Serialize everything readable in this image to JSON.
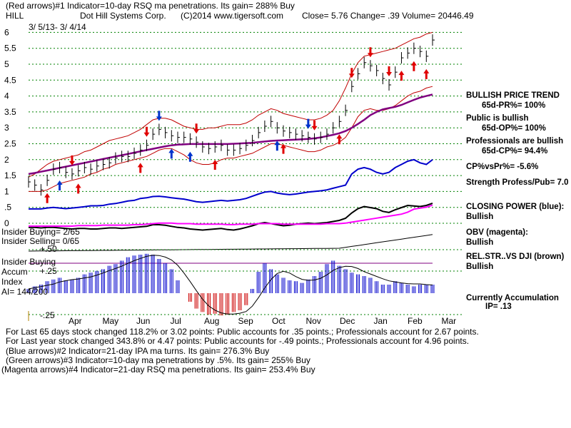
{
  "header": {
    "line1": "(Red arrows)#1 Indicator=10-day RSQ ma penetrations. Its gain= 288% Buy",
    "ticker": "HILL",
    "company": "Dot Hill Systems Corp.",
    "copyright": "(C)2014 www.tigersoft.com",
    "quote": "Close=  5.76  Change= .39 Volume= 20446.49",
    "date_range": "3/ 5/13- 3/ 4/14"
  },
  "colors": {
    "price": "#000000",
    "ma": "#800080",
    "bands": "#c00000",
    "ipa": "#0000cc",
    "cp": "#000000",
    "obv": "#ff00ff",
    "rel": "#000000",
    "accum_pos": "#0000cc",
    "accum_neg": "#cc0000",
    "grid": "#008000",
    "up_arrow": "#e00000",
    "down_arrow": "#e00000",
    "blue_arrow": "#0033cc"
  },
  "right_panel": {
    "trend_title": "BULLISH PRICE TREND",
    "pr": "65d-PR%= 100%",
    "public": "Public is bullish",
    "op": "65d-OP%= 100%",
    "prof": "Professionals are bullish",
    "cp": "65d-CP%= 94.4%",
    "cpvspr": "CP%vsPr%= -5.6%",
    "strength": "Strength Profess/Pub= 7.0",
    "closing_power": "CLOSING POWER (blue):",
    "closing_power_val": "Bullish",
    "obv": "OBV (magenta):",
    "obv_val": "Bullish",
    "relstr": "REL.STR..VS DJI (brown)",
    "relstr_val": "Bullish",
    "accum": "Currently Accumulation",
    "ip": "IP=  .13"
  },
  "panel_labels": {
    "insider_buying": "Insider Buying= 2/65",
    "insider_selling": "Insider Selling= 0/65",
    "insider_buying2": "Insider Buying",
    "accum": "Accum",
    "index": "Index",
    "ai": "AI= 144/200",
    "p50": "+.50",
    "p25": "+.25",
    "m25": "-.25"
  },
  "footer": {
    "line1": "For Last 65 days stock changed  118.2% or  3.02 points:  Public accounts for  .35 points.;  Professionals account for  2.67 points.",
    "line2": "For Last year stock changed  343.8% or  4.47 points:  Public accounts for -.49 points.;  Professionals account for  4.96 points.",
    "line3": "(Blue arrows)#2 Indicator=21-day IPA ma turns. Its gain= 276.3% Buy",
    "line4": "(Green arrows)#3 Indicator=10-day ma penetrations by .5%. Its gain= 255% Buy",
    "line5": "(Magenta arrows)#4 Indicator=21-day RSQ ma penetrations. Its gain= 253.4% Buy"
  },
  "chart_data": {
    "type": "line",
    "x_labels": [
      "Apr",
      "May",
      "Jun",
      "Jul",
      "Aug",
      "Sep",
      "Oct",
      "Nov",
      "Dec",
      "Jan",
      "Feb",
      "Mar"
    ],
    "y_ticks": [
      6,
      5.5,
      5,
      4.5,
      4,
      3.5,
      3,
      2.5,
      2,
      1.5,
      1,
      0.5,
      0
    ],
    "y_tick_labels": [
      "6",
      "5.5",
      "5",
      "4.5",
      "4",
      "3.5",
      "3",
      "2.5",
      "2",
      "1.5",
      "1",
      ".5",
      "0"
    ],
    "ylim": [
      0,
      6
    ],
    "grid": true,
    "series": [
      {
        "name": "price_close",
        "values": [
          1.3,
          1.2,
          1.05,
          1.35,
          1.7,
          1.75,
          1.6,
          1.55,
          1.65,
          1.75,
          1.7,
          1.8,
          1.85,
          1.9,
          2.05,
          2.1,
          2.1,
          2.2,
          2.3,
          2.45,
          2.8,
          2.95,
          2.85,
          2.75,
          2.7,
          2.7,
          2.65,
          2.55,
          2.4,
          2.35,
          2.4,
          2.45,
          2.3,
          2.3,
          2.35,
          2.45,
          2.6,
          2.85,
          3.05,
          3.2,
          3.0,
          2.9,
          2.85,
          2.8,
          2.75,
          2.7,
          2.65,
          2.7,
          2.8,
          3.0,
          3.2,
          3.55,
          4.3,
          4.7,
          5.05,
          4.95,
          4.8,
          4.55,
          4.35,
          4.75,
          5.2,
          5.35,
          5.5,
          5.4,
          5.25,
          5.76
        ]
      },
      {
        "name": "ma",
        "values": [
          1.55,
          1.58,
          1.62,
          1.66,
          1.7,
          1.74,
          1.78,
          1.82,
          1.86,
          1.9,
          1.94,
          1.98,
          2.02,
          2.06,
          2.1,
          2.14,
          2.18,
          2.22,
          2.26,
          2.3,
          2.34,
          2.38,
          2.42,
          2.45,
          2.47,
          2.48,
          2.49,
          2.49,
          2.49,
          2.49,
          2.49,
          2.49,
          2.49,
          2.5,
          2.51,
          2.52,
          2.53,
          2.55,
          2.57,
          2.59,
          2.6,
          2.61,
          2.62,
          2.63,
          2.64,
          2.65,
          2.67,
          2.7,
          2.74,
          2.78,
          2.83,
          2.9,
          3.0,
          3.12,
          3.25,
          3.4,
          3.5,
          3.58,
          3.62,
          3.66,
          3.72,
          3.8,
          3.88,
          3.95,
          4.0,
          4.05
        ]
      },
      {
        "name": "upper_band",
        "values": [
          1.45,
          1.55,
          1.7,
          1.85,
          1.95,
          2.0,
          2.05,
          2.1,
          2.15,
          2.25,
          2.3,
          2.4,
          2.5,
          2.6,
          2.65,
          2.7,
          2.75,
          2.85,
          2.95,
          3.1,
          3.25,
          3.3,
          3.3,
          3.25,
          3.15,
          3.05,
          3.0,
          2.95,
          2.95,
          3.0,
          3.0,
          3.05,
          3.1,
          3.1,
          3.1,
          3.15,
          3.25,
          3.4,
          3.5,
          3.6,
          3.55,
          3.45,
          3.4,
          3.35,
          3.3,
          3.25,
          3.25,
          3.3,
          3.4,
          3.55,
          3.85,
          4.25,
          4.7,
          5.05,
          5.25,
          5.3,
          5.35,
          5.4,
          5.45,
          5.5,
          5.6,
          5.7,
          5.8,
          5.85,
          5.95,
          6.0
        ]
      },
      {
        "name": "lower_band",
        "values": [
          1.0,
          1.0,
          1.0,
          1.05,
          1.15,
          1.25,
          1.3,
          1.35,
          1.4,
          1.45,
          1.55,
          1.6,
          1.7,
          1.75,
          1.85,
          1.9,
          1.95,
          2.0,
          2.05,
          2.1,
          2.2,
          2.3,
          2.35,
          2.35,
          2.25,
          2.15,
          2.0,
          1.9,
          1.85,
          1.85,
          1.9,
          2.0,
          2.05,
          2.05,
          2.1,
          2.15,
          2.2,
          2.3,
          2.4,
          2.5,
          2.5,
          2.45,
          2.4,
          2.35,
          2.3,
          2.25,
          2.25,
          2.3,
          2.4,
          2.45,
          2.55,
          2.7,
          3.0,
          3.35,
          3.55,
          3.6,
          3.55,
          3.55,
          3.6,
          3.7,
          3.85,
          4.0,
          4.1,
          4.15,
          4.25,
          4.3
        ]
      },
      {
        "name": "ipa",
        "values": [
          0.45,
          0.45,
          0.45,
          0.48,
          0.5,
          0.48,
          0.46,
          0.48,
          0.5,
          0.52,
          0.55,
          0.55,
          0.56,
          0.6,
          0.62,
          0.66,
          0.7,
          0.72,
          0.78,
          0.8,
          0.84,
          0.85,
          0.83,
          0.8,
          0.78,
          0.76,
          0.72,
          0.68,
          0.66,
          0.68,
          0.7,
          0.72,
          0.7,
          0.72,
          0.74,
          0.78,
          0.85,
          0.92,
          0.98,
          1.0,
          0.95,
          0.92,
          0.9,
          0.92,
          0.95,
          0.98,
          1.0,
          1.02,
          1.05,
          1.1,
          1.15,
          1.2,
          1.55,
          1.7,
          1.75,
          1.7,
          1.6,
          1.55,
          1.6,
          1.75,
          1.85,
          1.95,
          2.0,
          1.9,
          1.85,
          2.0
        ]
      },
      {
        "name": "closing_power",
        "values": [
          0.15,
          0.15,
          0.14,
          0.15,
          0.15,
          0.14,
          0.13,
          0.12,
          0.13,
          0.13,
          0.12,
          0.12,
          0.13,
          0.14,
          0.14,
          0.13,
          0.14,
          0.15,
          0.16,
          0.17,
          0.2,
          0.2,
          0.19,
          0.17,
          0.15,
          0.14,
          0.12,
          0.11,
          0.1,
          0.11,
          0.12,
          0.13,
          0.11,
          0.1,
          0.12,
          0.15,
          0.18,
          0.22,
          0.24,
          0.22,
          0.2,
          0.18,
          0.19,
          0.21,
          0.22,
          0.23,
          0.22,
          0.23,
          0.24,
          0.26,
          0.28,
          0.32,
          0.42,
          0.5,
          0.54,
          0.52,
          0.5,
          0.45,
          0.43,
          0.48,
          0.52,
          0.56,
          0.55,
          0.54,
          0.56,
          0.6
        ]
      },
      {
        "name": "obv",
        "values": [
          0.1,
          0.1,
          0.1,
          0.1,
          0.1,
          0.1,
          0.1,
          0.1,
          0.11,
          0.11,
          0.11,
          0.11,
          0.12,
          0.12,
          0.12,
          0.12,
          0.12,
          0.13,
          0.13,
          0.14,
          0.15,
          0.16,
          0.16,
          0.16,
          0.15,
          0.15,
          0.15,
          0.14,
          0.14,
          0.14,
          0.14,
          0.14,
          0.13,
          0.13,
          0.14,
          0.14,
          0.14,
          0.15,
          0.15,
          0.15,
          0.15,
          0.14,
          0.14,
          0.14,
          0.14,
          0.14,
          0.14,
          0.14,
          0.15,
          0.15,
          0.15,
          0.16,
          0.18,
          0.2,
          0.22,
          0.24,
          0.26,
          0.28,
          0.3,
          0.32,
          0.34,
          0.38,
          0.44,
          0.46,
          0.48,
          0.52
        ]
      },
      {
        "name": "accum_index",
        "values": [
          0.05,
          0.08,
          0.1,
          0.14,
          0.16,
          0.18,
          0.15,
          0.16,
          0.18,
          0.22,
          0.24,
          0.26,
          0.28,
          0.32,
          0.34,
          0.38,
          0.42,
          0.44,
          0.45,
          0.46,
          0.45,
          0.4,
          0.35,
          0.28,
          0.15,
          0.0,
          -0.1,
          -0.18,
          -0.22,
          -0.25,
          -0.24,
          -0.26,
          -0.25,
          -0.22,
          -0.2,
          -0.14,
          0.05,
          0.25,
          0.35,
          0.28,
          0.22,
          0.18,
          0.15,
          0.14,
          0.12,
          0.16,
          0.2,
          0.25,
          0.34,
          0.38,
          0.32,
          0.28,
          0.24,
          0.22,
          0.2,
          0.18,
          0.14,
          0.1,
          0.1,
          0.14,
          0.12,
          0.1,
          0.08,
          0.1,
          0.1,
          0.1
        ]
      }
    ],
    "arrows": {
      "red_up": [
        3,
        8,
        18,
        30,
        41,
        50,
        60,
        62,
        64
      ],
      "red_down": [
        7,
        19,
        27,
        46,
        52,
        55,
        58
      ],
      "blue_up": [
        5,
        23,
        26,
        40
      ],
      "blue_down": [
        21,
        45
      ]
    }
  }
}
